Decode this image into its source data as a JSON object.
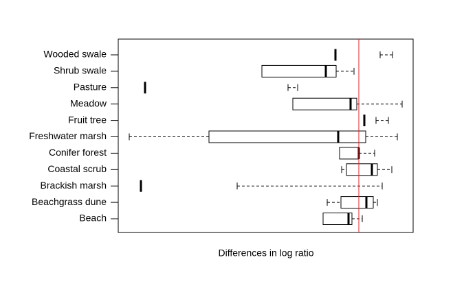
{
  "chart_data": {
    "type": "boxplot",
    "x_label": "Differences in log ratio",
    "categories": [
      "Wooded swale",
      "Shrub swale",
      "Pasture",
      "Meadow",
      "Fruit tree",
      "Freshwater marsh",
      "Conifer forest",
      "Coastal scrub",
      "Brackish marsh",
      "Beachgrass dune",
      "Beach"
    ],
    "whisker_low": [
      0.31,
      -1.41,
      -1.03,
      -0.96,
      0.25,
      -3.34,
      -0.28,
      -0.25,
      -1.77,
      -0.46,
      -0.52
    ],
    "q1": [
      -0.34,
      -1.41,
      -3.11,
      -0.96,
      0.08,
      -2.18,
      -0.28,
      -0.18,
      -3.17,
      -0.26,
      -0.52
    ],
    "median": [
      -0.34,
      -0.48,
      -3.11,
      -0.12,
      0.08,
      -0.3,
      0.0,
      0.19,
      -3.17,
      0.11,
      -0.15
    ],
    "q3": [
      -0.34,
      -0.33,
      -3.11,
      -0.03,
      0.08,
      0.1,
      0.0,
      0.27,
      -3.17,
      0.21,
      -0.1
    ],
    "whisker_high": [
      0.49,
      -0.07,
      -0.89,
      0.63,
      0.43,
      0.56,
      0.23,
      0.48,
      0.34,
      0.27,
      0.05
    ],
    "xlim": [
      -3.5,
      0.79
    ],
    "reference_line": 0,
    "reference_color": "#e0202a",
    "color": "#000000"
  }
}
